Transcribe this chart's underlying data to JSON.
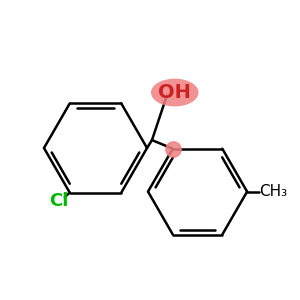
{
  "bg_color": "#ffffff",
  "bond_color": "#000000",
  "cl_color": "#00bb00",
  "oh_color": "#cc2222",
  "oh_bg": "#f08080",
  "bond_width": 1.8,
  "font_size_oh": 14,
  "font_size_cl": 13,
  "font_size_me": 11,
  "cl_atom": "Cl",
  "oh_label": "OH",
  "me_label": "CH₃",
  "figsize": [
    3.0,
    3.0
  ],
  "dpi": 100
}
